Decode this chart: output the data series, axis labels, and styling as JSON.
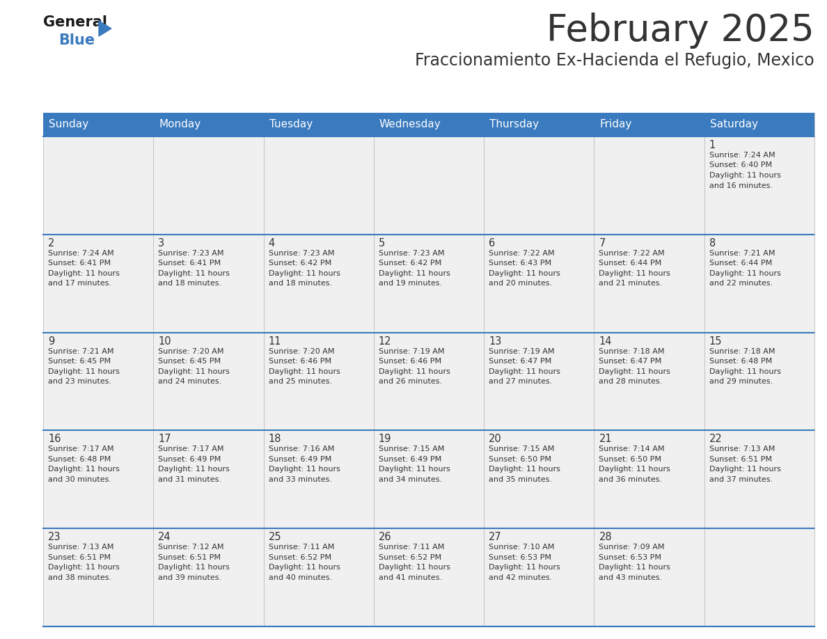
{
  "title": "February 2025",
  "subtitle": "Fraccionamiento Ex-Hacienda el Refugio, Mexico",
  "header_color": "#3a7abf",
  "header_text_color": "#ffffff",
  "cell_bg_color": "#f0f0f0",
  "cell_bg_empty": "#ffffff",
  "border_color": "#3a7abf",
  "text_color": "#333333",
  "days_of_week": [
    "Sunday",
    "Monday",
    "Tuesday",
    "Wednesday",
    "Thursday",
    "Friday",
    "Saturday"
  ],
  "calendar": [
    [
      null,
      null,
      null,
      null,
      null,
      null,
      1
    ],
    [
      2,
      3,
      4,
      5,
      6,
      7,
      8
    ],
    [
      9,
      10,
      11,
      12,
      13,
      14,
      15
    ],
    [
      16,
      17,
      18,
      19,
      20,
      21,
      22
    ],
    [
      23,
      24,
      25,
      26,
      27,
      28,
      null
    ]
  ],
  "sun_data": {
    "1": {
      "sunrise": "7:24 AM",
      "sunset": "6:40 PM",
      "daylight": "11 hours and 16 minutes"
    },
    "2": {
      "sunrise": "7:24 AM",
      "sunset": "6:41 PM",
      "daylight": "11 hours and 17 minutes"
    },
    "3": {
      "sunrise": "7:23 AM",
      "sunset": "6:41 PM",
      "daylight": "11 hours and 18 minutes"
    },
    "4": {
      "sunrise": "7:23 AM",
      "sunset": "6:42 PM",
      "daylight": "11 hours and 18 minutes"
    },
    "5": {
      "sunrise": "7:23 AM",
      "sunset": "6:42 PM",
      "daylight": "11 hours and 19 minutes"
    },
    "6": {
      "sunrise": "7:22 AM",
      "sunset": "6:43 PM",
      "daylight": "11 hours and 20 minutes"
    },
    "7": {
      "sunrise": "7:22 AM",
      "sunset": "6:44 PM",
      "daylight": "11 hours and 21 minutes"
    },
    "8": {
      "sunrise": "7:21 AM",
      "sunset": "6:44 PM",
      "daylight": "11 hours and 22 minutes"
    },
    "9": {
      "sunrise": "7:21 AM",
      "sunset": "6:45 PM",
      "daylight": "11 hours and 23 minutes"
    },
    "10": {
      "sunrise": "7:20 AM",
      "sunset": "6:45 PM",
      "daylight": "11 hours and 24 minutes"
    },
    "11": {
      "sunrise": "7:20 AM",
      "sunset": "6:46 PM",
      "daylight": "11 hours and 25 minutes"
    },
    "12": {
      "sunrise": "7:19 AM",
      "sunset": "6:46 PM",
      "daylight": "11 hours and 26 minutes"
    },
    "13": {
      "sunrise": "7:19 AM",
      "sunset": "6:47 PM",
      "daylight": "11 hours and 27 minutes"
    },
    "14": {
      "sunrise": "7:18 AM",
      "sunset": "6:47 PM",
      "daylight": "11 hours and 28 minutes"
    },
    "15": {
      "sunrise": "7:18 AM",
      "sunset": "6:48 PM",
      "daylight": "11 hours and 29 minutes"
    },
    "16": {
      "sunrise": "7:17 AM",
      "sunset": "6:48 PM",
      "daylight": "11 hours and 30 minutes"
    },
    "17": {
      "sunrise": "7:17 AM",
      "sunset": "6:49 PM",
      "daylight": "11 hours and 31 minutes"
    },
    "18": {
      "sunrise": "7:16 AM",
      "sunset": "6:49 PM",
      "daylight": "11 hours and 33 minutes"
    },
    "19": {
      "sunrise": "7:15 AM",
      "sunset": "6:49 PM",
      "daylight": "11 hours and 34 minutes"
    },
    "20": {
      "sunrise": "7:15 AM",
      "sunset": "6:50 PM",
      "daylight": "11 hours and 35 minutes"
    },
    "21": {
      "sunrise": "7:14 AM",
      "sunset": "6:50 PM",
      "daylight": "11 hours and 36 minutes"
    },
    "22": {
      "sunrise": "7:13 AM",
      "sunset": "6:51 PM",
      "daylight": "11 hours and 37 minutes"
    },
    "23": {
      "sunrise": "7:13 AM",
      "sunset": "6:51 PM",
      "daylight": "11 hours and 38 minutes"
    },
    "24": {
      "sunrise": "7:12 AM",
      "sunset": "6:51 PM",
      "daylight": "11 hours and 39 minutes"
    },
    "25": {
      "sunrise": "7:11 AM",
      "sunset": "6:52 PM",
      "daylight": "11 hours and 40 minutes"
    },
    "26": {
      "sunrise": "7:11 AM",
      "sunset": "6:52 PM",
      "daylight": "11 hours and 41 minutes"
    },
    "27": {
      "sunrise": "7:10 AM",
      "sunset": "6:53 PM",
      "daylight": "11 hours and 42 minutes"
    },
    "28": {
      "sunrise": "7:09 AM",
      "sunset": "6:53 PM",
      "daylight": "11 hours and 43 minutes"
    }
  },
  "logo_general_color": "#1a1a1a",
  "logo_blue_color": "#3a7abf",
  "logo_triangle_color": "#3a7abf"
}
